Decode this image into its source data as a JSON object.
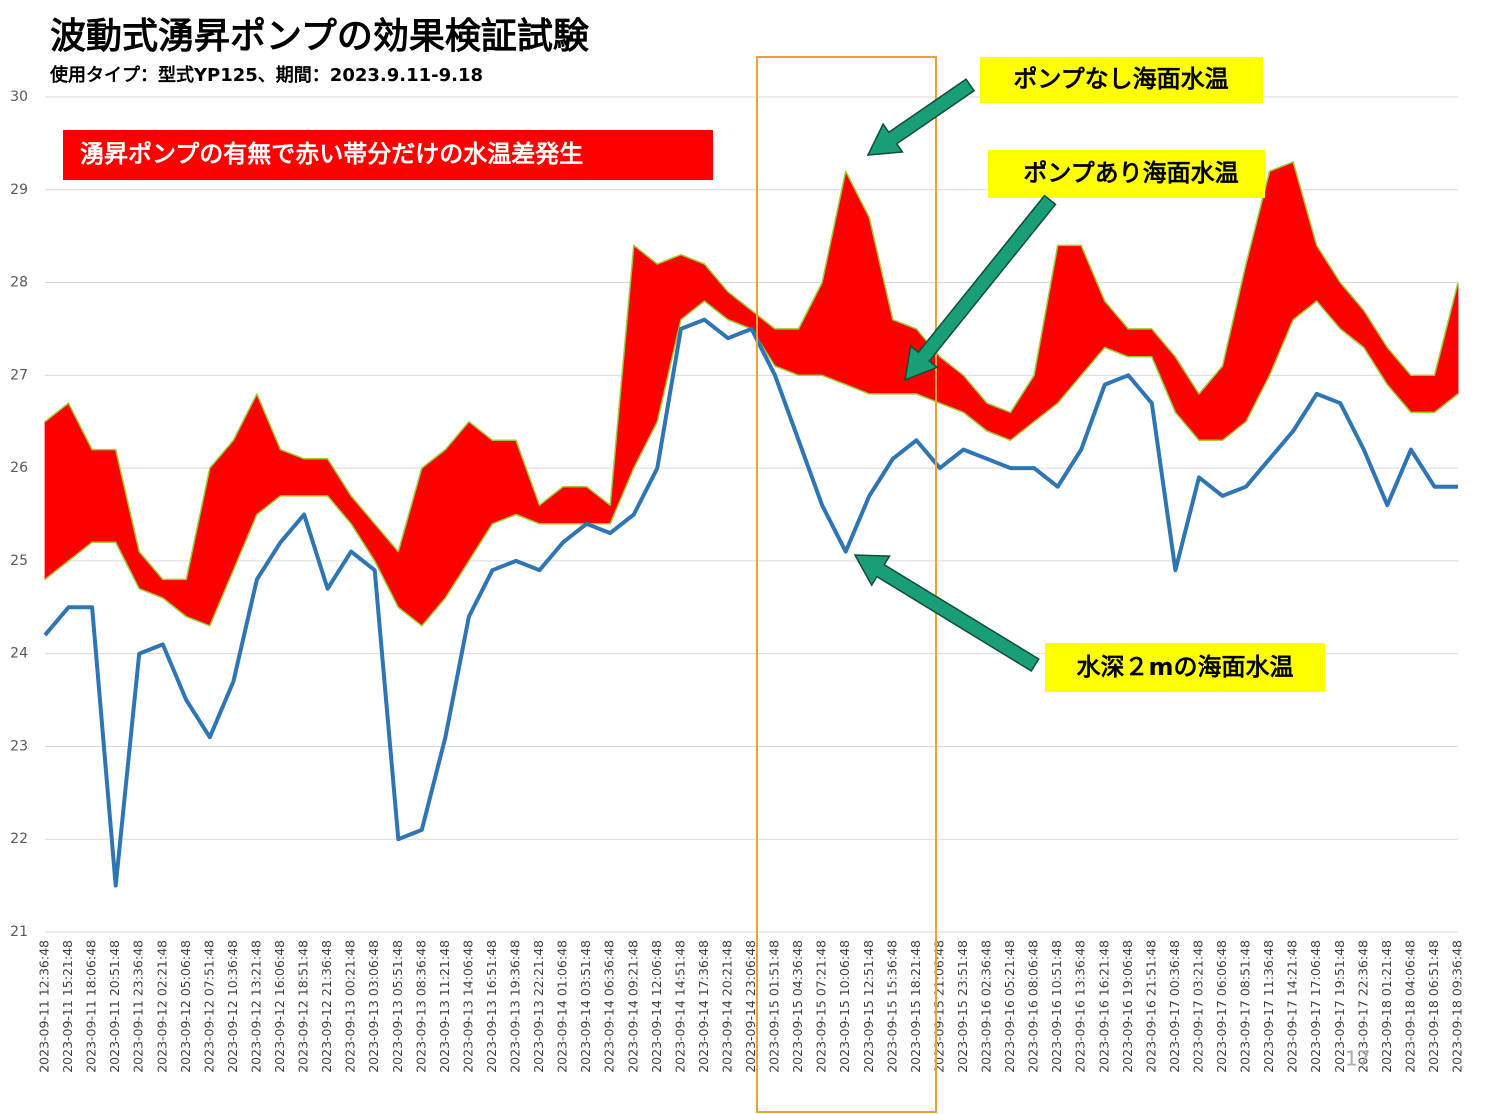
{
  "chart_data": {
    "type": "band-line",
    "title": "波動式湧昇ポンプの効果検証試験",
    "subtitle": "使用タイプ：型式YP125、期間：2023.9.11-9.18",
    "note": "湧昇ポンプの有無で赤い帯分だけの水温差発生",
    "page_number": "17",
    "categories": [
      "2023-09-11 12:36:48",
      "2023-09-11 15:21:48",
      "2023-09-11 18:06:48",
      "2023-09-11 20:51:48",
      "2023-09-11 23:36:48",
      "2023-09-12 02:21:48",
      "2023-09-12 05:06:48",
      "2023-09-12 07:51:48",
      "2023-09-12 10:36:48",
      "2023-09-12 13:21:48",
      "2023-09-12 16:06:48",
      "2023-09-12 18:51:48",
      "2023-09-12 21:36:48",
      "2023-09-13 00:21:48",
      "2023-09-13 03:06:48",
      "2023-09-13 05:51:48",
      "2023-09-13 08:36:48",
      "2023-09-13 11:21:48",
      "2023-09-13 14:06:48",
      "2023-09-13 16:51:48",
      "2023-09-13 19:36:48",
      "2023-09-13 22:21:48",
      "2023-09-14 01:06:48",
      "2023-09-14 03:51:48",
      "2023-09-14 06:36:48",
      "2023-09-14 09:21:48",
      "2023-09-14 12:06:48",
      "2023-09-14 14:51:48",
      "2023-09-14 17:36:48",
      "2023-09-14 20:21:48",
      "2023-09-14 23:06:48",
      "2023-09-15 01:51:48",
      "2023-09-15 04:36:48",
      "2023-09-15 07:21:48",
      "2023-09-15 10:06:48",
      "2023-09-15 12:51:48",
      "2023-09-15 15:36:48",
      "2023-09-15 18:21:48",
      "2023-09-15 21:06:48",
      "2023-09-15 23:51:48",
      "2023-09-16 02:36:48",
      "2023-09-16 05:21:48",
      "2023-09-16 08:06:48",
      "2023-09-16 10:51:48",
      "2023-09-16 13:36:48",
      "2023-09-16 16:21:48",
      "2023-09-16 19:06:48",
      "2023-09-16 21:51:48",
      "2023-09-17 00:36:48",
      "2023-09-17 03:21:48",
      "2023-09-17 06:06:48",
      "2023-09-17 08:51:48",
      "2023-09-17 11:36:48",
      "2023-09-17 14:21:48",
      "2023-09-17 17:06:48",
      "2023-09-17 19:51:48",
      "2023-09-17 22:36:48",
      "2023-09-18 01:21:48",
      "2023-09-18 04:06:48",
      "2023-09-18 06:51:48",
      "2023-09-18 09:36:48"
    ],
    "band_color": "#ff0000",
    "series": [
      {
        "name": "ポンプなし海面水温",
        "color": "#9acd32",
        "values": [
          26.5,
          26.7,
          26.2,
          26.2,
          25.1,
          24.8,
          24.8,
          26.0,
          26.3,
          26.8,
          26.2,
          26.1,
          26.1,
          25.7,
          25.4,
          25.1,
          26.0,
          26.2,
          26.5,
          26.3,
          26.3,
          25.6,
          25.8,
          25.8,
          25.6,
          28.4,
          28.2,
          28.3,
          28.2,
          27.9,
          27.7,
          27.5,
          27.5,
          28.0,
          29.2,
          28.7,
          27.6,
          27.5,
          27.2,
          27.0,
          26.7,
          26.6,
          27.0,
          28.4,
          28.4,
          27.8,
          27.5,
          27.5,
          27.2,
          26.8,
          27.1,
          28.2,
          29.2,
          29.3,
          28.4,
          28.0,
          27.7,
          27.3,
          27.0,
          27.0,
          28.0
        ]
      },
      {
        "name": "ポンプあり海面水温",
        "color": "#9acd32",
        "values": [
          24.8,
          25.0,
          25.2,
          25.2,
          24.7,
          24.6,
          24.4,
          24.3,
          24.9,
          25.5,
          25.7,
          25.7,
          25.7,
          25.4,
          25.0,
          24.5,
          24.3,
          24.6,
          25.0,
          25.4,
          25.5,
          25.4,
          25.4,
          25.4,
          25.4,
          26.0,
          26.5,
          27.6,
          27.8,
          27.6,
          27.5,
          27.1,
          27.0,
          27.0,
          26.9,
          26.8,
          26.8,
          26.8,
          26.7,
          26.6,
          26.4,
          26.3,
          26.5,
          26.7,
          27.0,
          27.3,
          27.2,
          27.2,
          26.6,
          26.3,
          26.3,
          26.5,
          27.0,
          27.6,
          27.8,
          27.5,
          27.3,
          26.9,
          26.6,
          26.6,
          26.8
        ]
      },
      {
        "name": "水深２mの海面水温",
        "color": "#2e75b6",
        "values": [
          24.2,
          24.5,
          24.5,
          21.5,
          24.0,
          24.1,
          23.5,
          23.1,
          23.7,
          24.8,
          25.2,
          25.5,
          24.7,
          25.1,
          24.9,
          22.0,
          22.1,
          23.1,
          24.4,
          24.9,
          25.0,
          24.9,
          25.2,
          25.4,
          25.3,
          25.5,
          26.0,
          27.5,
          27.6,
          27.4,
          27.5,
          27.0,
          26.3,
          25.6,
          25.1,
          25.7,
          26.1,
          26.3,
          26.0,
          26.2,
          26.1,
          26.0,
          26.0,
          25.8,
          26.2,
          26.9,
          27.0,
          26.7,
          24.9,
          25.9,
          25.7,
          25.8,
          26.1,
          26.4,
          26.8,
          26.7,
          26.2,
          25.6,
          26.2,
          25.8,
          25.8
        ]
      }
    ],
    "ylim": [
      21,
      30
    ],
    "yticks": [
      21,
      22,
      23,
      24,
      25,
      26,
      27,
      28,
      29,
      30
    ],
    "grid": true
  }
}
